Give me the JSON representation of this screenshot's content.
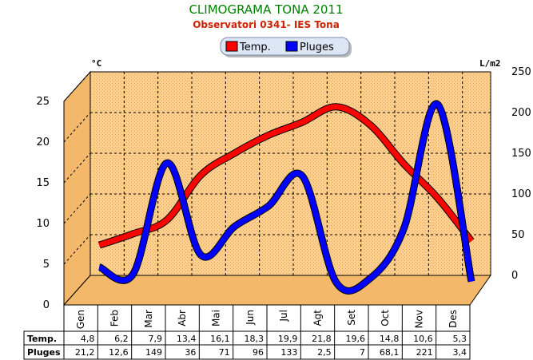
{
  "chart_data": {
    "type": "line",
    "title": "CLIMOGRAMA TONA 2011",
    "subtitle": "Observatori 0341- IES Tona",
    "categories": [
      "Gen",
      "Feb",
      "Mar",
      "Abr",
      "Mai",
      "Jun",
      "Jul",
      "Agt",
      "Set",
      "Oct",
      "Nov",
      "Des"
    ],
    "y_left_label": "°C",
    "y_right_label": "L/m2",
    "y_left_range": [
      0,
      25
    ],
    "y_left_ticks": [
      "0",
      "5",
      "10",
      "15",
      "20",
      "25"
    ],
    "y_right_range": [
      0,
      250
    ],
    "y_right_ticks": [
      "0",
      "50",
      "100",
      "150",
      "200",
      "250"
    ],
    "legend_position": "top-center",
    "grid": true,
    "series": [
      {
        "name": "Temp.",
        "axis": "left",
        "color": "#ff0000",
        "values": [
          4.8,
          6.2,
          7.9,
          13.4,
          16.1,
          18.3,
          19.9,
          21.8,
          19.6,
          14.8,
          10.6,
          5.3
        ],
        "display": [
          "4,8",
          "6,2",
          "7,9",
          "13,4",
          "16,1",
          "18,3",
          "19,9",
          "21,8",
          "19,6",
          "14,8",
          "10,6",
          "5,3"
        ]
      },
      {
        "name": "Pluges",
        "axis": "right",
        "color": "#0000ff",
        "values": [
          21.2,
          12.6,
          149,
          36,
          71,
          96,
          133,
          2.5,
          7,
          68.1,
          221,
          3.4
        ],
        "display": [
          "21,2",
          "12,6",
          "149",
          "36",
          "71",
          "96",
          "133",
          "2,5",
          "7",
          "68,1",
          "221",
          "3,4"
        ]
      }
    ]
  }
}
